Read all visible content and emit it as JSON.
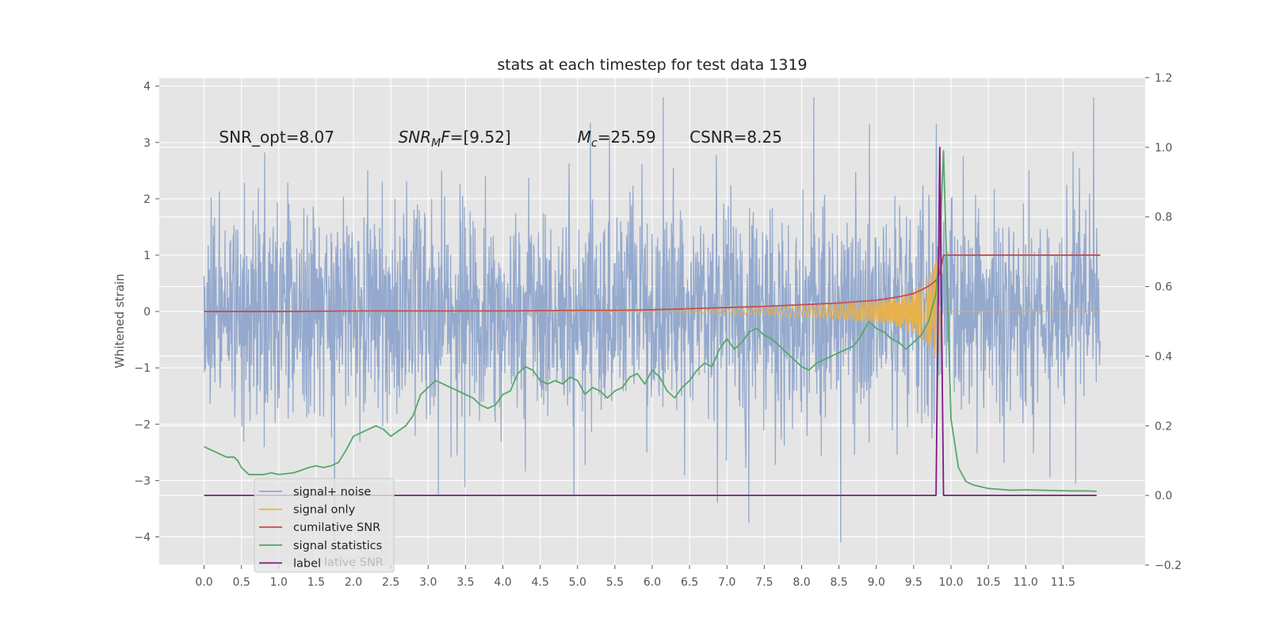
{
  "chart_data": {
    "type": "line",
    "title": "stats at each timestep for test data 1319",
    "xlabel": "",
    "ylabel": "Whitened strain",
    "xlim": [
      -0.6,
      12.6
    ],
    "ylim": [
      -4.5,
      4.15
    ],
    "y2lim": [
      -0.2,
      1.2
    ],
    "x_ticks": [
      "0.0",
      "0.5",
      "1.0",
      "1.5",
      "2.0",
      "2.5",
      "3.0",
      "3.5",
      "4.0",
      "4.5",
      "5.0",
      "5.5",
      "6.0",
      "6.5",
      "7.0",
      "7.5",
      "8.0",
      "8.5",
      "9.0",
      "9.5",
      "10.0",
      "10.5",
      "11.0",
      "11.5"
    ],
    "y_ticks": [
      "4",
      "3",
      "2",
      "1",
      "0",
      "−1",
      "−2",
      "−3",
      "−4"
    ],
    "y2_ticks": [
      "1.2",
      "1.0",
      "0.8",
      "0.6",
      "0.4",
      "0.2",
      "0.0",
      "−0.2"
    ],
    "grid": true,
    "annotations": [
      {
        "text": "SNR_opt=8.07",
        "x": 0.2,
        "y": 3.0
      },
      {
        "text": "SNR_MF=[9.52]",
        "x": 2.6,
        "y": 3.0
      },
      {
        "text": "M_c=25.59",
        "x": 5.0,
        "y": 3.0
      },
      {
        "text": "CSNR=8.25",
        "x": 6.5,
        "y": 3.0
      }
    ],
    "legend_position": "lower-left",
    "legend_entries": [
      "signal+ noise",
      "signal only",
      "cumilative SNR",
      "signal statistics",
      "label"
    ],
    "legend_overlap_text": "lative SNR",
    "series": [
      {
        "name": "signal+ noise",
        "color": "#94a9cd",
        "axis": "left",
        "description": "whitened strain noise, roughly uniform amplitude about +/-2 with spikes to +/-4",
        "x_range": [
          0.0,
          12.0
        ]
      },
      {
        "name": "signal only",
        "color": "#e8b14b",
        "axis": "left",
        "envelope_x": [
          6.0,
          7.0,
          8.0,
          8.5,
          9.0,
          9.3,
          9.5,
          9.65,
          9.75,
          9.82,
          9.87,
          9.9
        ],
        "envelope_amp": [
          0.0,
          0.05,
          0.1,
          0.14,
          0.2,
          0.28,
          0.4,
          0.55,
          0.75,
          0.95,
          0.6,
          0.0
        ]
      },
      {
        "name": "cumilative SNR",
        "color": "#c44e52",
        "axis": "left",
        "x": [
          0.0,
          1.0,
          2.0,
          3.0,
          4.0,
          5.0,
          5.5,
          6.0,
          6.5,
          7.0,
          7.5,
          8.0,
          8.5,
          9.0,
          9.3,
          9.5,
          9.6,
          9.7,
          9.8,
          9.85,
          9.9,
          10.0,
          11.0,
          12.0
        ],
        "y": [
          0.0,
          0.0,
          0.01,
          0.01,
          0.01,
          0.02,
          0.02,
          0.03,
          0.05,
          0.07,
          0.09,
          0.12,
          0.15,
          0.2,
          0.26,
          0.32,
          0.38,
          0.45,
          0.55,
          0.68,
          1.0,
          1.0,
          1.0,
          1.0
        ]
      },
      {
        "name": "signal statistics",
        "color": "#55a868",
        "axis": "right",
        "x": [
          0.0,
          0.1,
          0.2,
          0.3,
          0.4,
          0.45,
          0.5,
          0.6,
          0.7,
          0.8,
          0.9,
          1.0,
          1.2,
          1.4,
          1.5,
          1.6,
          1.7,
          1.8,
          1.9,
          2.0,
          2.1,
          2.2,
          2.3,
          2.4,
          2.5,
          2.6,
          2.7,
          2.8,
          2.9,
          3.0,
          3.1,
          3.2,
          3.3,
          3.4,
          3.5,
          3.6,
          3.7,
          3.8,
          3.9,
          4.0,
          4.1,
          4.2,
          4.3,
          4.4,
          4.5,
          4.6,
          4.7,
          4.8,
          4.9,
          5.0,
          5.1,
          5.2,
          5.3,
          5.4,
          5.5,
          5.6,
          5.7,
          5.8,
          5.9,
          6.0,
          6.1,
          6.2,
          6.3,
          6.4,
          6.5,
          6.6,
          6.7,
          6.8,
          6.9,
          7.0,
          7.1,
          7.2,
          7.3,
          7.4,
          7.5,
          7.6,
          7.7,
          7.8,
          7.9,
          8.0,
          8.1,
          8.2,
          8.3,
          8.4,
          8.5,
          8.6,
          8.7,
          8.8,
          8.9,
          9.0,
          9.1,
          9.2,
          9.3,
          9.4,
          9.5,
          9.6,
          9.7,
          9.8,
          9.85,
          9.9,
          9.95,
          10.0,
          10.1,
          10.2,
          10.3,
          10.5,
          10.8,
          11.0,
          11.2,
          11.4,
          11.6,
          11.8,
          11.95
        ],
        "y": [
          0.14,
          0.13,
          0.12,
          0.11,
          0.11,
          0.1,
          0.08,
          0.06,
          0.06,
          0.06,
          0.065,
          0.06,
          0.065,
          0.08,
          0.085,
          0.08,
          0.085,
          0.095,
          0.13,
          0.17,
          0.18,
          0.19,
          0.2,
          0.19,
          0.17,
          0.185,
          0.2,
          0.23,
          0.29,
          0.31,
          0.33,
          0.32,
          0.31,
          0.3,
          0.29,
          0.28,
          0.26,
          0.25,
          0.26,
          0.29,
          0.3,
          0.35,
          0.37,
          0.36,
          0.33,
          0.32,
          0.33,
          0.32,
          0.34,
          0.33,
          0.29,
          0.31,
          0.3,
          0.28,
          0.3,
          0.31,
          0.34,
          0.35,
          0.32,
          0.36,
          0.34,
          0.3,
          0.28,
          0.31,
          0.33,
          0.36,
          0.38,
          0.37,
          0.42,
          0.45,
          0.42,
          0.44,
          0.47,
          0.48,
          0.46,
          0.45,
          0.43,
          0.41,
          0.39,
          0.37,
          0.36,
          0.38,
          0.39,
          0.4,
          0.41,
          0.42,
          0.43,
          0.46,
          0.5,
          0.48,
          0.47,
          0.45,
          0.44,
          0.42,
          0.44,
          0.46,
          0.5,
          0.58,
          0.72,
          0.99,
          0.6,
          0.22,
          0.08,
          0.04,
          0.03,
          0.02,
          0.015,
          0.016,
          0.015,
          0.014,
          0.013,
          0.013,
          0.012
        ]
      },
      {
        "name": "label",
        "color": "#7f1b80",
        "axis": "right",
        "x": [
          0.0,
          9.8,
          9.85,
          9.9,
          11.95
        ],
        "y": [
          0.0,
          0.0,
          1.0,
          0.0,
          0.0
        ]
      }
    ]
  }
}
